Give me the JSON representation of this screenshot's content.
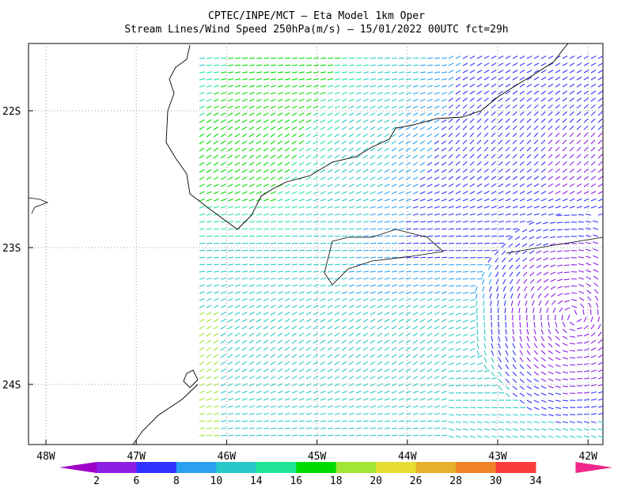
{
  "header": {
    "title": "CPTEC/INPE/MCT –  Eta Model 1km Oper",
    "subtitle": "Stream Lines/Wind Speed 250hPa(m/s) – 15/01/2022 00UTC fct=29h"
  },
  "map": {
    "lat_labels": [
      "22S",
      "23S",
      "24S"
    ],
    "lon_labels": [
      "48W",
      "47W",
      "46W",
      "45W",
      "44W",
      "43W",
      "42W"
    ]
  },
  "colorbar": {
    "labels": [
      2,
      6,
      8,
      10,
      14,
      16,
      18,
      20,
      26,
      28,
      30,
      34
    ],
    "colors": [
      "#a000c8",
      "#8c1ee6",
      "#3232ff",
      "#2aa0f0",
      "#28c8c8",
      "#1ee696",
      "#00dc00",
      "#a0e632",
      "#e6dc32",
      "#e6af2d",
      "#f08228",
      "#fa3c3c",
      "#f0288c"
    ]
  }
}
